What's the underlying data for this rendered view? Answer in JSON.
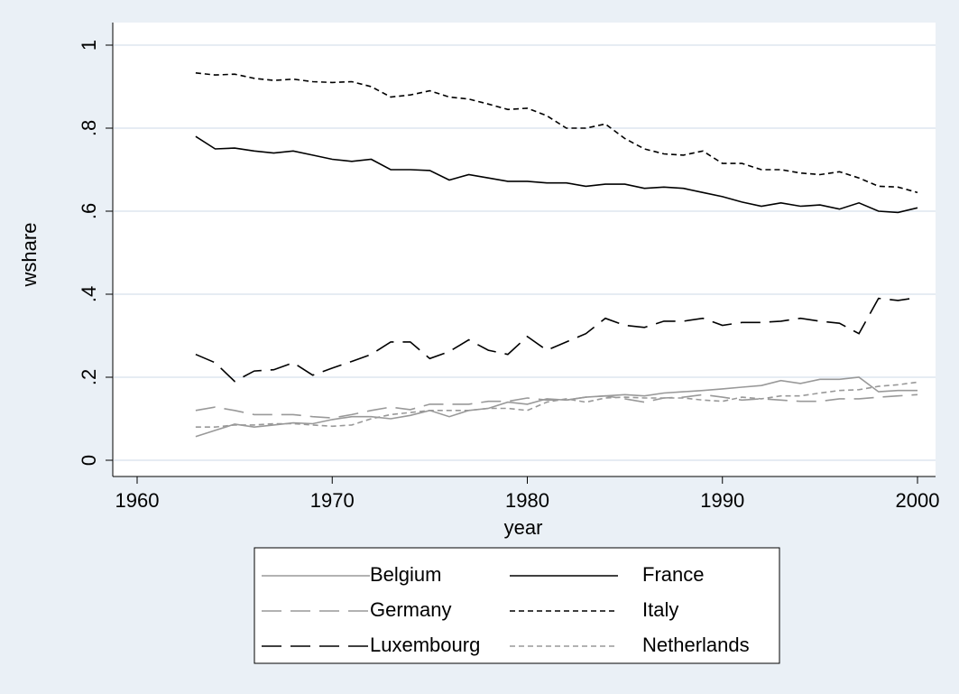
{
  "chart_data": {
    "type": "line",
    "x_label": "year",
    "y_label": "wshare",
    "x": [
      1963,
      1964,
      1965,
      1966,
      1967,
      1968,
      1969,
      1970,
      1971,
      1972,
      1973,
      1974,
      1975,
      1976,
      1977,
      1978,
      1979,
      1980,
      1981,
      1982,
      1983,
      1984,
      1985,
      1986,
      1987,
      1988,
      1989,
      1990,
      1991,
      1992,
      1993,
      1994,
      1995,
      1996,
      1997,
      1998,
      1999,
      2000
    ],
    "xlim": [
      1960,
      2000
    ],
    "xticks": [
      1960,
      1970,
      1980,
      1990,
      2000
    ],
    "ylim": [
      0,
      1
    ],
    "yticks": [
      0,
      {
        "value": 0.2,
        "label": ".2"
      },
      {
        "value": 0.4,
        "label": ".4"
      },
      {
        "value": 0.6,
        "label": ".6"
      },
      {
        "value": 0.8,
        "label": ".8"
      },
      1
    ],
    "grid": true,
    "series": [
      {
        "name": "Belgium",
        "color": "#999999",
        "dash": "solid",
        "values": [
          0.057,
          0.072,
          0.087,
          0.08,
          0.085,
          0.09,
          0.088,
          0.098,
          0.105,
          0.105,
          0.1,
          0.108,
          0.12,
          0.105,
          0.12,
          0.125,
          0.14,
          0.135,
          0.148,
          0.145,
          0.152,
          0.155,
          0.158,
          0.155,
          0.162,
          0.165,
          0.168,
          0.172,
          0.176,
          0.18,
          0.192,
          0.185,
          0.195,
          0.195,
          0.2,
          0.165,
          0.168,
          0.168
        ]
      },
      {
        "name": "France",
        "color": "#000000",
        "dash": "solid",
        "values": [
          0.78,
          0.75,
          0.752,
          0.745,
          0.74,
          0.745,
          0.735,
          0.725,
          0.72,
          0.725,
          0.7,
          0.7,
          0.698,
          0.675,
          0.688,
          0.68,
          0.672,
          0.672,
          0.668,
          0.668,
          0.66,
          0.665,
          0.665,
          0.655,
          0.658,
          0.655,
          0.645,
          0.635,
          0.622,
          0.612,
          0.62,
          0.612,
          0.615,
          0.605,
          0.62,
          0.6,
          0.597,
          0.608
        ]
      },
      {
        "name": "Germany",
        "color": "#999999",
        "dash": "long",
        "values": [
          0.12,
          0.128,
          0.12,
          0.11,
          0.11,
          0.11,
          0.105,
          0.102,
          0.11,
          0.12,
          0.128,
          0.122,
          0.135,
          0.135,
          0.135,
          0.142,
          0.142,
          0.15,
          0.145,
          0.145,
          0.152,
          0.155,
          0.148,
          0.14,
          0.15,
          0.152,
          0.158,
          0.152,
          0.145,
          0.148,
          0.145,
          0.142,
          0.142,
          0.148,
          0.148,
          0.152,
          0.155,
          0.158
        ]
      },
      {
        "name": "Italy",
        "color": "#000000",
        "dash": "short",
        "values": [
          0.933,
          0.928,
          0.93,
          0.92,
          0.915,
          0.918,
          0.912,
          0.91,
          0.912,
          0.9,
          0.875,
          0.88,
          0.89,
          0.875,
          0.87,
          0.858,
          0.845,
          0.848,
          0.83,
          0.8,
          0.8,
          0.81,
          0.775,
          0.75,
          0.738,
          0.735,
          0.745,
          0.715,
          0.715,
          0.7,
          0.7,
          0.692,
          0.688,
          0.695,
          0.68,
          0.66,
          0.658,
          0.645
        ]
      },
      {
        "name": "Luxembourg",
        "color": "#000000",
        "dash": "long",
        "values": [
          0.255,
          0.235,
          0.19,
          0.215,
          0.218,
          0.235,
          0.205,
          0.222,
          0.238,
          0.255,
          0.285,
          0.285,
          0.245,
          0.262,
          0.29,
          0.265,
          0.255,
          0.298,
          0.265,
          0.285,
          0.305,
          0.342,
          0.325,
          0.32,
          0.335,
          0.335,
          0.342,
          0.325,
          0.332,
          0.332,
          0.335,
          0.342,
          0.335,
          0.33,
          0.305,
          0.39,
          0.385,
          0.392
        ]
      },
      {
        "name": "Netherlands",
        "color": "#999999",
        "dash": "short",
        "values": [
          0.08,
          0.08,
          0.085,
          0.085,
          0.088,
          0.088,
          0.085,
          0.082,
          0.085,
          0.1,
          0.11,
          0.115,
          0.12,
          0.12,
          0.12,
          0.125,
          0.125,
          0.12,
          0.14,
          0.148,
          0.14,
          0.15,
          0.152,
          0.15,
          0.15,
          0.15,
          0.145,
          0.142,
          0.152,
          0.148,
          0.155,
          0.155,
          0.162,
          0.168,
          0.17,
          0.178,
          0.182,
          0.188
        ]
      }
    ]
  }
}
